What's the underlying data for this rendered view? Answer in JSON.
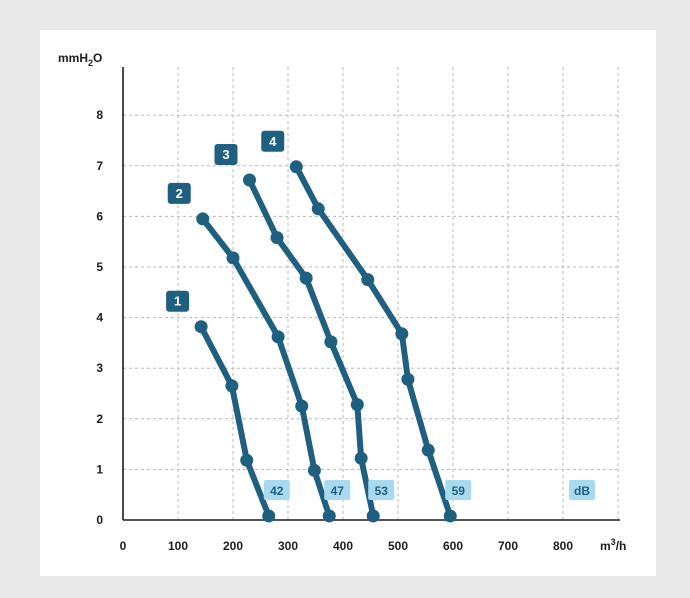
{
  "chart_data": {
    "type": "line",
    "xlabel": "m3/h",
    "ylabel": "mmH2O",
    "xlim": [
      0,
      900
    ],
    "ylim": [
      0,
      9
    ],
    "x_ticks": [
      "0",
      "100",
      "200",
      "300",
      "400",
      "500",
      "600",
      "700",
      "800"
    ],
    "y_ticks": [
      "0",
      "1",
      "2",
      "3",
      "4",
      "5",
      "6",
      "7",
      "8"
    ],
    "grid": true,
    "series": [
      {
        "name": "1",
        "db": "42",
        "x": [
          142,
          198,
          225,
          265
        ],
        "y": [
          3.82,
          2.65,
          1.18,
          0.08
        ]
      },
      {
        "name": "2",
        "db": "47",
        "x": [
          145,
          200,
          282,
          325,
          348,
          375
        ],
        "y": [
          5.95,
          5.18,
          3.62,
          2.25,
          0.98,
          0.08
        ]
      },
      {
        "name": "3",
        "db": "53",
        "x": [
          230,
          280,
          333,
          378,
          426,
          433,
          455
        ],
        "y": [
          6.72,
          5.58,
          4.78,
          3.52,
          2.28,
          1.22,
          0.08
        ]
      },
      {
        "name": "4",
        "db": "59",
        "x": [
          315,
          355,
          445,
          507,
          518,
          555,
          595
        ],
        "y": [
          6.98,
          6.15,
          4.75,
          3.68,
          2.78,
          1.38,
          0.08
        ]
      }
    ],
    "db_labels": [
      "42",
      "47",
      "53",
      "59",
      "dB"
    ],
    "colors": {
      "curve": "#1f5f80",
      "label_box": "#1f5f80",
      "db_box": "#a9d9ef",
      "grid": "#b8b8b8",
      "axis": "#1d1d1d"
    }
  }
}
